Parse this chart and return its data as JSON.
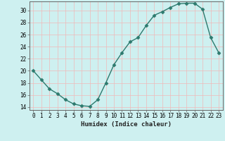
{
  "x": [
    0,
    1,
    2,
    3,
    4,
    5,
    6,
    7,
    8,
    9,
    10,
    11,
    12,
    13,
    14,
    15,
    16,
    17,
    18,
    19,
    20,
    21,
    22,
    23
  ],
  "y": [
    20,
    18.5,
    17,
    16.2,
    15.2,
    14.5,
    14.2,
    14.1,
    15.2,
    18,
    21,
    23,
    24.8,
    25.5,
    27.5,
    29.2,
    29.8,
    30.5,
    31.1,
    31.2,
    31.2,
    30.2,
    25.5,
    23
  ],
  "line_color": "#2d7a6e",
  "marker": "D",
  "marker_size": 2.5,
  "bg_color": "#cef0f0",
  "grid_color": "#f0b8b8",
  "xlabel": "Humidex (Indice chaleur)",
  "ylim": [
    13.5,
    31.5
  ],
  "xlim": [
    -0.5,
    23.5
  ],
  "yticks": [
    14,
    16,
    18,
    20,
    22,
    24,
    26,
    28,
    30
  ],
  "xticks": [
    0,
    1,
    2,
    3,
    4,
    5,
    6,
    7,
    8,
    9,
    10,
    11,
    12,
    13,
    14,
    15,
    16,
    17,
    18,
    19,
    20,
    21,
    22,
    23
  ],
  "tick_labelsize": 5.5,
  "xlabel_fontsize": 6.5,
  "axis_color": "#666666"
}
